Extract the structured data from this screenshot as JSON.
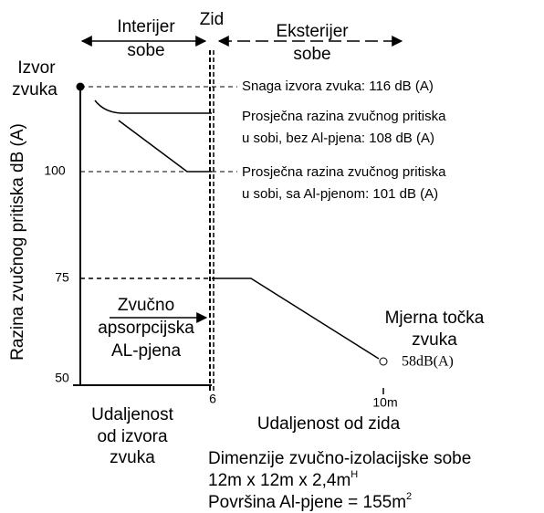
{
  "top": {
    "interior": [
      "Interijer",
      "sobe"
    ],
    "wall": "Zid",
    "exterior": [
      "Eksterijer",
      "sobe"
    ]
  },
  "y_axis": {
    "label": "Razina zvučnog pritiska dB (A)",
    "ticks": [
      "100",
      "75",
      "50"
    ]
  },
  "source": [
    "Izvor",
    "zvuka"
  ],
  "notes": {
    "power": "Snaga izvora zvuka: 116 dB (A)",
    "without": [
      "Prosječna razina zvučnog pritiska",
      "u sobi, bez Al-pjena: 108 dB (A)"
    ],
    "with": [
      "Prosječna razina zvučnog pritiska",
      "u sobi, sa Al-pjenom: 101 dB (A)"
    ]
  },
  "foam": [
    "Zvučno",
    "apsorpcijska",
    "AL-pjena"
  ],
  "measure": {
    "label": [
      "Mjerna točka",
      "zvuka"
    ],
    "value": "58dB(A)"
  },
  "x_axis": {
    "ticks": [
      "6",
      "10m"
    ],
    "inside": [
      "Udaljenost",
      "od izvora",
      "zvuka"
    ],
    "outside": "Udaljenost od zida"
  },
  "room": {
    "title": "Dimenzije zvučno-izolacijske sobe",
    "size": "12m x 12m x 2,4m",
    "size_sup": "H",
    "area": "Površina Al-pjene = 155m",
    "area_sup": "2"
  }
}
